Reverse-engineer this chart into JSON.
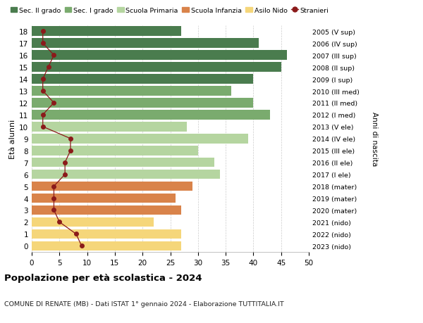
{
  "ages": [
    18,
    17,
    16,
    15,
    14,
    13,
    12,
    11,
    10,
    9,
    8,
    7,
    6,
    5,
    4,
    3,
    2,
    1,
    0
  ],
  "years_labels": [
    "2005 (V sup)",
    "2006 (IV sup)",
    "2007 (III sup)",
    "2008 (II sup)",
    "2009 (I sup)",
    "2010 (III med)",
    "2011 (II med)",
    "2012 (I med)",
    "2013 (V ele)",
    "2014 (IV ele)",
    "2015 (III ele)",
    "2016 (II ele)",
    "2017 (I ele)",
    "2018 (mater)",
    "2019 (mater)",
    "2020 (mater)",
    "2021 (nido)",
    "2022 (nido)",
    "2023 (nido)"
  ],
  "bar_values": [
    27,
    41,
    46,
    45,
    40,
    36,
    40,
    43,
    28,
    39,
    30,
    33,
    34,
    29,
    26,
    27,
    22,
    27,
    27
  ],
  "bar_colors": [
    "#4a7c4e",
    "#4a7c4e",
    "#4a7c4e",
    "#4a7c4e",
    "#4a7c4e",
    "#7aab6e",
    "#7aab6e",
    "#7aab6e",
    "#b5d5a0",
    "#b5d5a0",
    "#b5d5a0",
    "#b5d5a0",
    "#b5d5a0",
    "#d9834a",
    "#d9834a",
    "#d9834a",
    "#f5d67a",
    "#f5d67a",
    "#f5d67a"
  ],
  "stranieri_values": [
    2,
    2,
    4,
    3,
    2,
    2,
    4,
    2,
    2,
    7,
    7,
    6,
    6,
    4,
    4,
    4,
    5,
    8,
    9
  ],
  "stranieri_color": "#8b1a1a",
  "legend_labels": [
    "Sec. II grado",
    "Sec. I grado",
    "Scuola Primaria",
    "Scuola Infanzia",
    "Asilo Nido",
    "Stranieri"
  ],
  "legend_colors": [
    "#4a7c4e",
    "#7aab6e",
    "#b5d5a0",
    "#d9834a",
    "#f5d67a",
    "#8b1a1a"
  ],
  "title": "Popolazione per età scolastica - 2024",
  "subtitle": "COMUNE DI RENATE (MB) - Dati ISTAT 1° gennaio 2024 - Elaborazione TUTTITALIA.IT",
  "ylabel_left": "Età alunni",
  "ylabel_right": "Anni di nascita",
  "xlim": [
    0,
    50
  ],
  "background_color": "#ffffff",
  "grid_color": "#cccccc",
  "xticks": [
    0,
    5,
    10,
    15,
    20,
    25,
    30,
    35,
    40,
    45,
    50
  ]
}
